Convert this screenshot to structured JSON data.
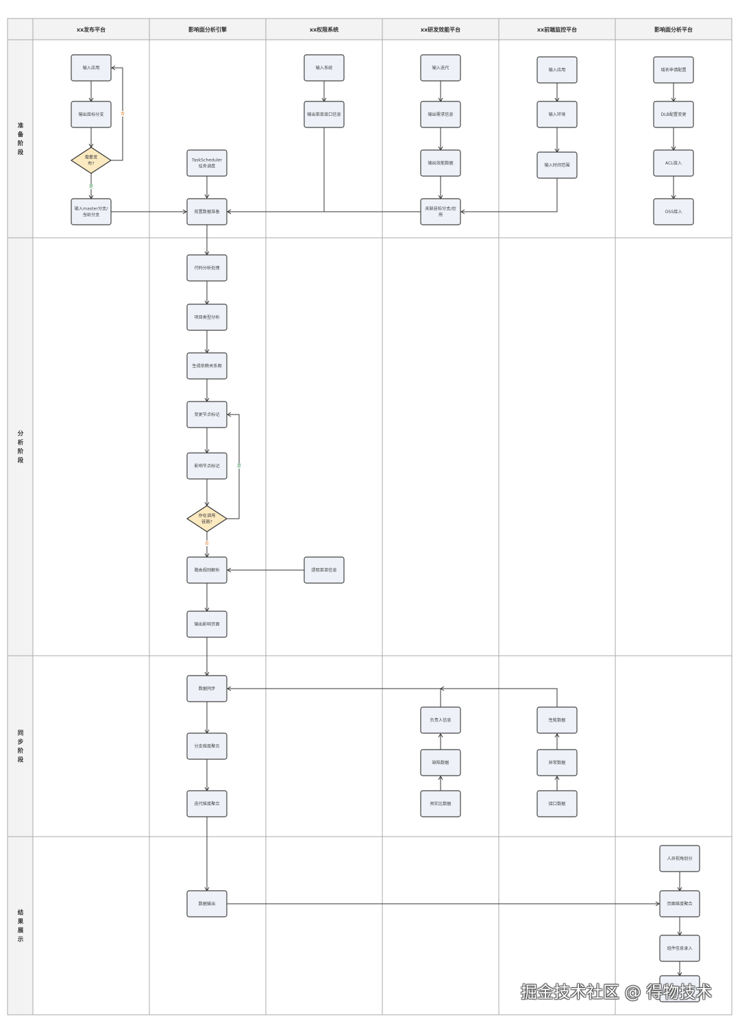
{
  "colors": {
    "accent_header": "#e0393e",
    "header_text": "#333333",
    "node_fill": "#eef1f8",
    "decision_fill": "#fbe9c0",
    "yes_label": "#3a8a4a",
    "no_label": "#e08a3a"
  },
  "columns": [
    {
      "label": "xx发布平台",
      "highlight": false
    },
    {
      "label": "影响面分析引擎",
      "highlight": true
    },
    {
      "label": "xx权限系统",
      "highlight": false
    },
    {
      "label": "xx研发效能平台",
      "highlight": false
    },
    {
      "label": "xx前端监控平台",
      "highlight": false
    },
    {
      "label": "影响面分析平台",
      "highlight": true
    }
  ],
  "phases": [
    {
      "chars": [
        "准",
        "备",
        "阶",
        "段"
      ]
    },
    {
      "chars": [
        "分",
        "析",
        "阶",
        "段"
      ]
    },
    {
      "chars": [
        "同",
        "步",
        "阶",
        "段"
      ]
    },
    {
      "chars": [
        "结",
        "果",
        "展",
        "示"
      ]
    }
  ],
  "nodes": {
    "pub_input_app": {
      "lines": [
        "输入应用"
      ]
    },
    "pub_output_branch": {
      "lines": [
        "输出目标分支"
      ]
    },
    "pub_need_publish": {
      "lines": [
        "需要发",
        "布?"
      ]
    },
    "pub_input_master": {
      "lines": [
        "输入master分支/",
        "当前分支"
      ]
    },
    "eng_task_scheduler": {
      "lines": [
        "TaskScheduler",
        "任务调度"
      ]
    },
    "eng_pre_data": {
      "lines": [
        "前置数据准备"
      ]
    },
    "eng_code_analysis": {
      "lines": [
        "代码分析处理"
      ]
    },
    "eng_project_type": {
      "lines": [
        "项目类型分析"
      ]
    },
    "eng_dep_graph": {
      "lines": [
        "生成依赖关系图"
      ]
    },
    "eng_change_mark": {
      "lines": [
        "变更节点标记"
      ]
    },
    "eng_impact_mark": {
      "lines": [
        "影响节点标记"
      ]
    },
    "eng_call_chain": {
      "lines": [
        "存在调用",
        "链路?"
      ]
    },
    "eng_route_parse": {
      "lines": [
        "路由规则解析"
      ]
    },
    "eng_output_pages": {
      "lines": [
        "输出影响页面"
      ]
    },
    "eng_data_sync": {
      "lines": [
        "数据同步"
      ]
    },
    "eng_branch_agg": {
      "lines": [
        "分支维度聚合"
      ]
    },
    "eng_iter_agg": {
      "lines": [
        "迭代维度聚合"
      ]
    },
    "eng_data_output": {
      "lines": [
        "数据输出"
      ]
    },
    "perm_input_system": {
      "lines": [
        "输入系统"
      ]
    },
    "perm_output_menu": {
      "lines": [
        "输出菜单接口信息"
      ]
    },
    "perm_extract_menu": {
      "lines": [
        "提取菜单信息"
      ]
    },
    "eff_input_iter": {
      "lines": [
        "输入迭代"
      ]
    },
    "eff_output_req": {
      "lines": [
        "输出需求信息"
      ]
    },
    "eff_output_data": {
      "lines": [
        "输出效能数据"
      ]
    },
    "eff_link_branch": {
      "lines": [
        "关联目标分支/应",
        "用"
      ]
    },
    "eff_owner": {
      "lines": [
        "负责人信息"
      ]
    },
    "eff_defect": {
      "lines": [
        "缺陷数据"
      ]
    },
    "eff_ratio": {
      "lines": [
        "预实比数据"
      ]
    },
    "mon_input_app": {
      "lines": [
        "输入应用"
      ]
    },
    "mon_input_env": {
      "lines": [
        "输入环境"
      ]
    },
    "mon_input_time": {
      "lines": [
        "输入时间范围"
      ]
    },
    "mon_perf": {
      "lines": [
        "性能数据"
      ]
    },
    "mon_error": {
      "lines": [
        "异常数据"
      ]
    },
    "mon_api": {
      "lines": [
        "接口数据"
      ]
    },
    "plat_domain": {
      "lines": [
        "域名申请配置"
      ]
    },
    "plat_dlb": {
      "lines": [
        "DLB配置变更"
      ]
    },
    "plat_acl": {
      "lines": [
        "ACL接入"
      ]
    },
    "plat_oss": {
      "lines": [
        "OSS接入"
      ]
    },
    "plat_role_view": {
      "lines": [
        "人员视角划分"
      ]
    },
    "plat_page_agg": {
      "lines": [
        "页面维度聚合"
      ]
    },
    "plat_component": {
      "lines": [
        "组件信息录入"
      ]
    },
    "plat_last": {
      "lines": [
        ""
      ]
    }
  },
  "edge_labels": {
    "yes": "是",
    "no": "否"
  },
  "watermark": "掘金技术社区 @ 得物技术"
}
